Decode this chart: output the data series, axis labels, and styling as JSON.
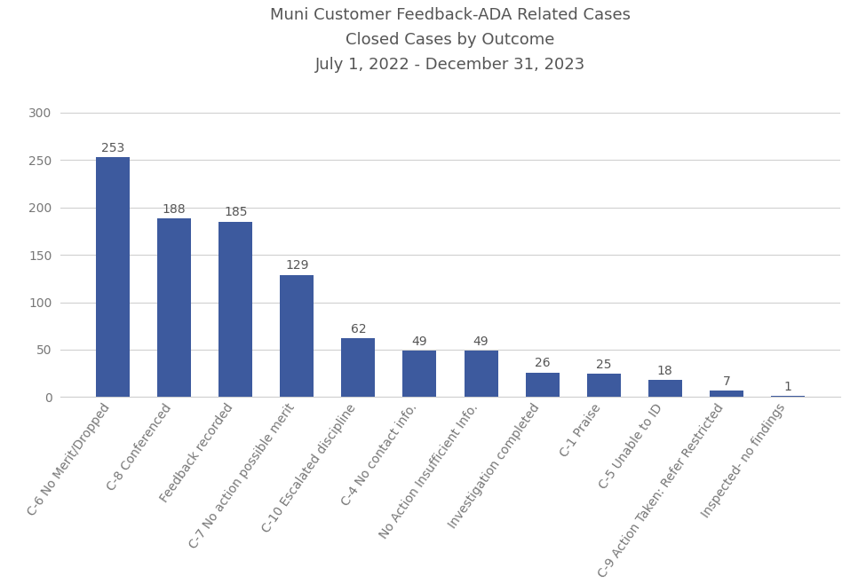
{
  "title": "Muni Customer Feedback-ADA Related Cases\nClosed Cases by Outcome\nJuly 1, 2022 - December 31, 2023",
  "categories": [
    "C-6 No Merit/Dropped",
    "C-8 Conferenced",
    "Feedback recorded",
    "C-7 No action possible merit",
    "C-10 Escalated discipline",
    "C-4 No contact info.",
    "No Action Insufficient Info.",
    "Investigation completed",
    "C-1 Praise",
    "C-5 Unable to ID",
    "C-9 Action Taken: Refer Restricted",
    "Inspected- no findings"
  ],
  "values": [
    253,
    188,
    185,
    129,
    62,
    49,
    49,
    26,
    25,
    18,
    7,
    1
  ],
  "bar_color": "#3d5a9e",
  "background_color": "#ffffff",
  "ylim": [
    0,
    320
  ],
  "yticks": [
    0,
    50,
    100,
    150,
    200,
    250,
    300
  ],
  "title_fontsize": 13,
  "value_fontsize": 10,
  "tick_fontsize": 10,
  "grid_color": "#d0d0d0",
  "label_rotation": 55,
  "bar_width": 0.55
}
